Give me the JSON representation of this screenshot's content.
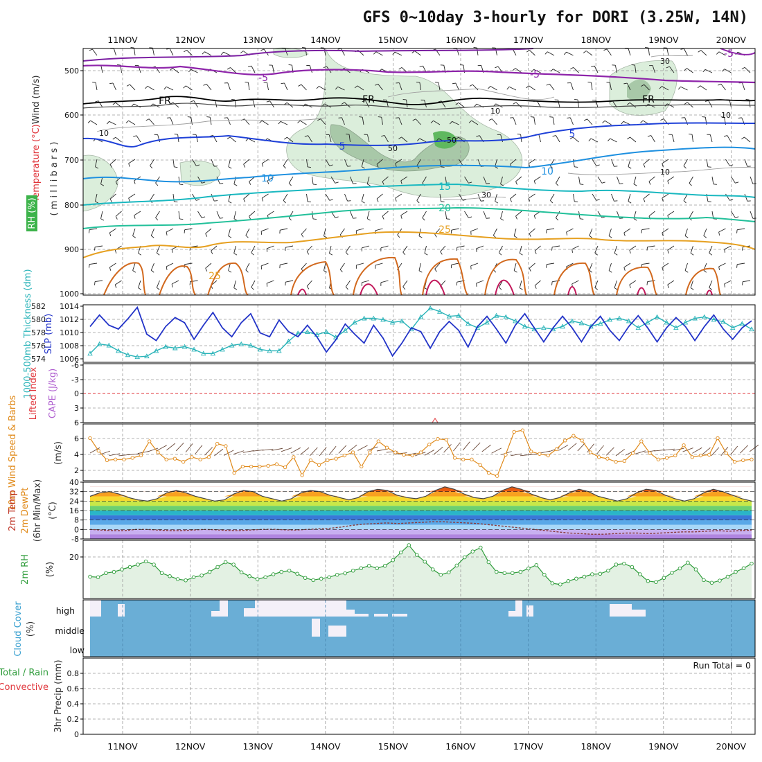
{
  "title": "GFS 0~10day 3-hourly for DORI (3.25W, 14N)",
  "dates": [
    "11NOV",
    "12NOV",
    "13NOV",
    "14NOV",
    "15NOV",
    "16NOV",
    "17NOV",
    "18NOV",
    "19NOV",
    "20NOV"
  ],
  "colors": {
    "wind_label": "#333333",
    "temp_label": "#e0343a",
    "rh_label": "#4caf50",
    "thick_label": "#28b3b8",
    "slp_label": "#2233c8",
    "lifted_label": "#e0343a",
    "cape_label": "#b060d0",
    "wind10_label": "#e08a1a",
    "temp2m_label": "#c0392b",
    "dew2m_label": "#e08a1a",
    "rh2m_label": "#2e9c3a",
    "cloud_label": "#3aa0d0",
    "precip_total_label": "#2e9c3a",
    "precip_conv_label": "#e0343a"
  },
  "panels": {
    "upper": {
      "label_wind": "Wind (m/s)",
      "label_temp": "Temperature (°C)",
      "label_rh": "RH (%)",
      "label_pres": "( m i l l i b a r s )",
      "yticks": [
        "500",
        "600",
        "700",
        "800",
        "900",
        "1000"
      ],
      "contour_labels": [
        "-5",
        "-5",
        "FR",
        "FR",
        "FR",
        "-5",
        "5",
        "5",
        "10",
        "10",
        "15",
        "20",
        "25",
        "25",
        "30",
        "10",
        "10",
        "10",
        "10",
        "50",
        "30",
        "50"
      ]
    },
    "thick": {
      "label_thick": "1000-500mb Thickness (dm)",
      "label_slp": "SLP (mb)",
      "yticks_left": [
        "582",
        "580",
        "578",
        "576",
        "574"
      ],
      "yticks_right": [
        "1014",
        "1012",
        "1010",
        "1008",
        "1006"
      ]
    },
    "cape": {
      "label_li": "Lifted Index",
      "label_cape": "CAPE (J/kg)",
      "yticks": [
        "-6",
        "-3",
        "0",
        "3",
        "6"
      ]
    },
    "wind10": {
      "label": "10m Wind Speed & Barbs",
      "label_units": "(m/s)",
      "yticks": [
        "6",
        "4",
        "2"
      ]
    },
    "temp2m": {
      "label_temp": "2m Temp",
      "label_dew": "2m DewPt",
      "label_minmax": "(6hr Min/Max)",
      "label_units": "(°C)",
      "yticks": [
        "40",
        "32",
        "24",
        "16",
        "8",
        "0",
        "-8"
      ]
    },
    "rh2m": {
      "label": "2m RH",
      "label_units": "(%)",
      "yticks": [
        "20"
      ]
    },
    "cloud": {
      "label": "Cloud Cover",
      "label_units": "(%)",
      "levels": [
        "high",
        "middle",
        "low"
      ]
    },
    "precip": {
      "label_total": "Total / Rain",
      "label_conv": "Convective",
      "label_units": "3hr Precip (mm)",
      "yticks": [
        "0.8",
        "0.6",
        "0.4",
        "0.2",
        "0"
      ],
      "run_total": "Run Total = 0"
    }
  },
  "chart_data": [
    {
      "type": "line",
      "name": "SLP (mb)",
      "x_units": "3-hour steps from 10NOV 12UTC",
      "ylim": [
        1005,
        1014
      ],
      "values": [
        1010.6,
        1012.4,
        1010.8,
        1010.2,
        1011.8,
        1013.6,
        1009.4,
        1008.4,
        1010.6,
        1012,
        1011.2,
        1008.6,
        1010.8,
        1012.8,
        1010.4,
        1009,
        1011.2,
        1012.6,
        1009.6,
        1009,
        1011.6,
        1009.8,
        1009,
        1010.8,
        1009,
        1006.6,
        1008.5,
        1011,
        1009.4,
        1008,
        1010.8,
        1008.8,
        1006,
        1008,
        1010.4,
        1009.8,
        1007.2,
        1009.8,
        1011.4,
        1010,
        1007.4,
        1010.6,
        1012.2,
        1010.2,
        1008,
        1010.8,
        1012.6,
        1010.4,
        1008.2,
        1010.4,
        1012.2,
        1010.4,
        1008.2,
        1010.6,
        1012.2,
        1010,
        1008.4,
        1010.6,
        1012.3,
        1010.4,
        1008.2,
        1010.4,
        1012,
        1010.6,
        1008.4,
        1010.6,
        1012.4,
        1010.2,
        1008.6,
        1010.4,
        1011.5
      ]
    },
    {
      "type": "line",
      "name": "1000-500mb Thickness (dm)",
      "ylim": [
        573.5,
        582
      ],
      "values": [
        574.8,
        576.2,
        576,
        575.2,
        574.6,
        574.3,
        574.4,
        575.2,
        575.8,
        575.6,
        575.8,
        575.4,
        574.8,
        574.8,
        575.4,
        576,
        576.2,
        576,
        575.4,
        575.2,
        575.2,
        576.6,
        577.8,
        578,
        577.6,
        578,
        577.2,
        578.2,
        579.4,
        580,
        580,
        579.8,
        579.4,
        579.6,
        578.4,
        580.2,
        581.5,
        581,
        580.3,
        580.4,
        579.2,
        578.6,
        579.4,
        580.4,
        580.2,
        579.6,
        578.8,
        578.4,
        578.6,
        578.4,
        578.8,
        579.6,
        579.3,
        578.8,
        579.2,
        579.8,
        580,
        579.6,
        578.6,
        579.4,
        580.2,
        579.4,
        578.6,
        579.4,
        580,
        580.2,
        579.8,
        579.5,
        578.6,
        579.2,
        578.4
      ]
    },
    {
      "type": "line",
      "name": "10m Wind Speed (m/s)",
      "ylim": [
        0.8,
        8
      ],
      "values": [
        6.2,
        4.6,
        3.4,
        3.5,
        3.5,
        3.7,
        4,
        5.8,
        4.4,
        3.5,
        3.6,
        3.2,
        3.8,
        3.5,
        3.8,
        5.5,
        5.2,
        1.8,
        2.6,
        2.6,
        2.6,
        2.7,
        2.9,
        2.5,
        3.8,
        1.5,
        3.4,
        2.8,
        3.4,
        3.6,
        4,
        4.4,
        2.6,
        4.4,
        5.8,
        5,
        4.4,
        4.1,
        4,
        4.4,
        5.4,
        6.1,
        6,
        3.7,
        3.5,
        3.5,
        2.8,
        1.8,
        1.4,
        4.1,
        7,
        7.2,
        4.5,
        4.2,
        4,
        4.8,
        5.9,
        6.5,
        5.9,
        4.4,
        3.8,
        3.6,
        3.2,
        3.3,
        4.3,
        5.8,
        4.3,
        3.5,
        3.7,
        4,
        5.3,
        3.8,
        4,
        4.1,
        6.2,
        4.3,
        3.2,
        3.4,
        3.5
      ]
    },
    {
      "type": "line",
      "name": "2m RH (%)",
      "ylim": [
        4,
        28
      ],
      "values": [
        13,
        12.8,
        14.5,
        15,
        16,
        17,
        18,
        19.3,
        18,
        14.5,
        13.2,
        12,
        11.5,
        12.8,
        13.5,
        15,
        17,
        19,
        18,
        14.8,
        13.2,
        12,
        12.8,
        14,
        15,
        15.5,
        14.2,
        12.5,
        11.6,
        12.2,
        12.8,
        13.8,
        14.4,
        15.5,
        16.5,
        17.5,
        16.5,
        17.5,
        19.8,
        23,
        26,
        22,
        19.2,
        16,
        13.8,
        14.8,
        17.6,
        21,
        23.4,
        25,
        19,
        15,
        14.5,
        14.5,
        15,
        16.4,
        17.8,
        13.8,
        10.3,
        9.8,
        11.2,
        12.2,
        13,
        14,
        14.2,
        15.5,
        18,
        18.4,
        17,
        14,
        11.2,
        10.8,
        12.5,
        14.6,
        16.4,
        18.8,
        16,
        11.6,
        10.5,
        11.4,
        13,
        15,
        16.5,
        18.4
      ]
    },
    {
      "type": "line",
      "name": "2m Temp (°C)",
      "ylim": [
        -8,
        40
      ],
      "values": [
        28,
        31,
        32,
        30,
        27,
        25,
        24,
        26,
        31,
        33,
        31,
        28,
        26,
        24,
        25,
        30,
        33,
        32,
        28,
        26,
        24,
        26,
        31,
        33,
        32,
        29,
        27,
        25,
        27,
        32,
        34,
        33,
        29,
        27,
        26,
        28,
        33,
        36,
        34,
        30,
        27,
        26,
        28,
        33,
        36,
        34,
        30,
        27,
        25,
        27,
        31,
        34,
        32,
        28,
        26,
        24,
        26,
        31,
        34,
        33,
        29,
        26,
        24,
        26,
        31,
        34,
        32,
        29,
        26,
        24
      ]
    },
    {
      "type": "line",
      "name": "2m DewPt (°C)",
      "ylim": [
        -8,
        40
      ],
      "values": [
        0,
        -0.5,
        -1,
        -1,
        0,
        0,
        -0.5,
        -1,
        -1,
        -0.5,
        0,
        -0.3,
        -0.8,
        -1,
        -0.5,
        0,
        0.2,
        -0.3,
        -0.5,
        0,
        0.5,
        1,
        2,
        3.5,
        4.5,
        5,
        5.5,
        5,
        5.5,
        6,
        6.5,
        6.5,
        6,
        5.5,
        5,
        4,
        3,
        2,
        1,
        0,
        -1,
        -2,
        -3,
        -3.5,
        -4,
        -4,
        -3.5,
        -3,
        -3,
        -3.5,
        -3,
        -2.5,
        -2,
        -2,
        -1.5,
        -1,
        -1.5,
        -1,
        -0.5
      ]
    },
    {
      "type": "area",
      "name": "Cloud Cover (%)",
      "note": "mostly full cover; high-level gaps near 11NOV, 12.5NOV, 13-15NOV, 17NOV, 18.5NOV"
    }
  ]
}
